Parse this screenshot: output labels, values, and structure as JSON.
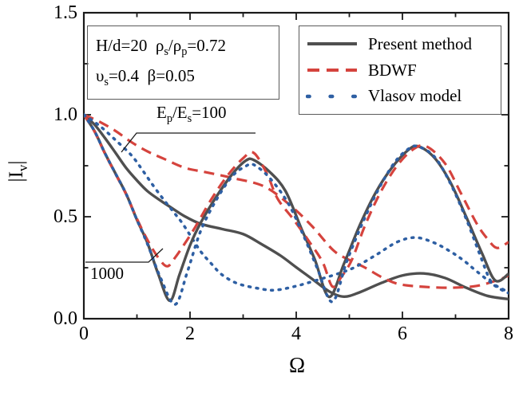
{
  "figure": {
    "background": "#ffffff",
    "axis_color": "#1a1a1a",
    "box_border_color": "#5a5a5a",
    "text_color": "#000000"
  },
  "param_box": {
    "line1": [
      {
        "t": "H/d=20  ρ"
      },
      {
        "sub": "s"
      },
      {
        "t": "/ρ"
      },
      {
        "sub": "p"
      },
      {
        "t": "=0.72"
      }
    ],
    "line2": [
      {
        "t": "υ"
      },
      {
        "sub": "s"
      },
      {
        "t": "=0.4  β=0.05"
      }
    ]
  },
  "annotations": {
    "ratio_100": {
      "text": [
        {
          "t": "E"
        },
        {
          "sub": "p"
        },
        {
          "t": "/E"
        },
        {
          "sub": "s"
        },
        {
          "t": "=100"
        }
      ]
    },
    "ratio_1000": {
      "text": [
        {
          "t": "1000"
        }
      ]
    }
  },
  "legend": {
    "entries": [
      {
        "label": "Present method",
        "style": "solid",
        "color": "#4f4f4f"
      },
      {
        "label": "BDWF",
        "style": "dashed",
        "color": "#d5433d"
      },
      {
        "label": "Vlasov model",
        "style": "dotted",
        "color": "#2e5fa3"
      }
    ]
  },
  "chart_data": {
    "type": "line",
    "xlabel": "Ω",
    "ylabel": "|Iv|",
    "ylabel_rich": [
      {
        "t": "|I"
      },
      {
        "sub": "v"
      },
      {
        "t": "|"
      }
    ],
    "xlim": [
      0,
      8
    ],
    "ylim": [
      0,
      1.5
    ],
    "grid": false,
    "legend_position": "top-right",
    "x_ticks": {
      "major": [
        {
          "v": 0,
          "label": "0"
        },
        {
          "v": 2,
          "label": "2"
        },
        {
          "v": 4,
          "label": "4"
        },
        {
          "v": 6,
          "label": "6"
        },
        {
          "v": 8,
          "label": "8"
        }
      ],
      "minor": [
        1,
        3,
        5,
        7
      ]
    },
    "y_ticks": {
      "major": [
        {
          "v": 0,
          "label": "0.0"
        },
        {
          "v": 0.5,
          "label": "0.5"
        },
        {
          "v": 1.0,
          "label": "1.0"
        },
        {
          "v": 1.5,
          "label": "1.5"
        }
      ],
      "minor": [
        0.25,
        0.75,
        1.25
      ]
    },
    "series": [
      {
        "id": "present-100",
        "name": "Present method",
        "group": "Ep/Es=100",
        "style": "solid",
        "color": "#4f4f4f",
        "width": 3.4,
        "points": [
          [
            0,
            1.0
          ],
          [
            0.2,
            0.952
          ],
          [
            0.4,
            0.885
          ],
          [
            0.6,
            0.812
          ],
          [
            0.8,
            0.738
          ],
          [
            1.0,
            0.678
          ],
          [
            1.2,
            0.625
          ],
          [
            1.45,
            0.578
          ],
          [
            1.62,
            0.549
          ],
          [
            1.9,
            0.502
          ],
          [
            2.2,
            0.465
          ],
          [
            2.6,
            0.44
          ],
          [
            3.0,
            0.415
          ],
          [
            3.35,
            0.365
          ],
          [
            3.7,
            0.31
          ],
          [
            4.0,
            0.252
          ],
          [
            4.3,
            0.195
          ],
          [
            4.62,
            0.134
          ],
          [
            4.9,
            0.108
          ],
          [
            5.2,
            0.13
          ],
          [
            5.6,
            0.175
          ],
          [
            6.0,
            0.212
          ],
          [
            6.4,
            0.222
          ],
          [
            6.8,
            0.2
          ],
          [
            7.2,
            0.152
          ],
          [
            7.6,
            0.112
          ],
          [
            8.0,
            0.096
          ]
        ]
      },
      {
        "id": "bdwf-100",
        "name": "BDWF",
        "group": "Ep/Es=100",
        "style": "dashed",
        "color": "#d5433d",
        "width": 3.2,
        "points": [
          [
            0,
            1.0
          ],
          [
            0.3,
            0.965
          ],
          [
            0.6,
            0.92
          ],
          [
            0.9,
            0.865
          ],
          [
            1.2,
            0.82
          ],
          [
            1.5,
            0.785
          ],
          [
            1.9,
            0.74
          ],
          [
            2.3,
            0.718
          ],
          [
            2.8,
            0.69
          ],
          [
            3.4,
            0.648
          ],
          [
            3.9,
            0.553
          ],
          [
            4.3,
            0.453
          ],
          [
            4.7,
            0.335
          ],
          [
            5.0,
            0.288
          ],
          [
            5.3,
            0.25
          ],
          [
            5.6,
            0.205
          ],
          [
            5.9,
            0.172
          ],
          [
            6.3,
            0.158
          ],
          [
            6.9,
            0.152
          ],
          [
            7.4,
            0.161
          ],
          [
            7.8,
            0.19
          ],
          [
            8.0,
            0.212
          ]
        ]
      },
      {
        "id": "vlasov-100",
        "name": "Vlasov model",
        "group": "Ep/Es=100",
        "style": "dotted",
        "color": "#2e5fa3",
        "width": 3.5,
        "points": [
          [
            0,
            1.0
          ],
          [
            0.3,
            0.945
          ],
          [
            0.6,
            0.875
          ],
          [
            0.9,
            0.8
          ],
          [
            1.1,
            0.73
          ],
          [
            1.3,
            0.655
          ],
          [
            1.5,
            0.585
          ],
          [
            1.7,
            0.52
          ],
          [
            1.85,
            0.47
          ],
          [
            2.0,
            0.41
          ],
          [
            2.2,
            0.33
          ],
          [
            2.4,
            0.27
          ],
          [
            2.6,
            0.216
          ],
          [
            2.9,
            0.172
          ],
          [
            3.3,
            0.148
          ],
          [
            3.6,
            0.14
          ],
          [
            4.0,
            0.16
          ],
          [
            4.4,
            0.19
          ],
          [
            4.8,
            0.222
          ],
          [
            5.1,
            0.252
          ],
          [
            5.5,
            0.312
          ],
          [
            5.9,
            0.376
          ],
          [
            6.25,
            0.398
          ],
          [
            6.6,
            0.372
          ],
          [
            6.9,
            0.33
          ],
          [
            7.15,
            0.286
          ],
          [
            7.4,
            0.232
          ],
          [
            7.7,
            0.172
          ],
          [
            8.0,
            0.13
          ]
        ]
      },
      {
        "id": "present-1000",
        "name": "Present method",
        "group": "Ep/Es=1000",
        "style": "solid",
        "color": "#4f4f4f",
        "width": 3.4,
        "points": [
          [
            0,
            1.0
          ],
          [
            0.2,
            0.92
          ],
          [
            0.4,
            0.81
          ],
          [
            0.6,
            0.71
          ],
          [
            0.8,
            0.61
          ],
          [
            1.0,
            0.485
          ],
          [
            1.2,
            0.37
          ],
          [
            1.4,
            0.22
          ],
          [
            1.62,
            0.088
          ],
          [
            1.8,
            0.215
          ],
          [
            2.0,
            0.36
          ],
          [
            2.2,
            0.47
          ],
          [
            2.5,
            0.6
          ],
          [
            2.8,
            0.71
          ],
          [
            3.05,
            0.775
          ],
          [
            3.2,
            0.778
          ],
          [
            3.5,
            0.72
          ],
          [
            3.8,
            0.625
          ],
          [
            4.1,
            0.44
          ],
          [
            4.35,
            0.29
          ],
          [
            4.62,
            0.107
          ],
          [
            4.9,
            0.27
          ],
          [
            5.2,
            0.46
          ],
          [
            5.5,
            0.62
          ],
          [
            5.8,
            0.74
          ],
          [
            6.1,
            0.825
          ],
          [
            6.3,
            0.845
          ],
          [
            6.6,
            0.79
          ],
          [
            6.9,
            0.67
          ],
          [
            7.2,
            0.5
          ],
          [
            7.5,
            0.32
          ],
          [
            7.75,
            0.187
          ],
          [
            8.0,
            0.22
          ]
        ]
      },
      {
        "id": "bdwf-1000",
        "name": "BDWF",
        "group": "Ep/Es=1000",
        "style": "dashed",
        "color": "#d5433d",
        "width": 3.2,
        "points": [
          [
            0,
            1.0
          ],
          [
            0.2,
            0.918
          ],
          [
            0.4,
            0.808
          ],
          [
            0.6,
            0.708
          ],
          [
            0.8,
            0.608
          ],
          [
            1.0,
            0.49
          ],
          [
            1.2,
            0.385
          ],
          [
            1.4,
            0.3
          ],
          [
            1.57,
            0.257
          ],
          [
            1.72,
            0.3
          ],
          [
            1.9,
            0.368
          ],
          [
            2.1,
            0.45
          ],
          [
            2.4,
            0.585
          ],
          [
            2.7,
            0.7
          ],
          [
            3.0,
            0.787
          ],
          [
            3.2,
            0.813
          ],
          [
            3.45,
            0.71
          ],
          [
            3.65,
            0.588
          ],
          [
            3.95,
            0.486
          ],
          [
            4.25,
            0.376
          ],
          [
            4.5,
            0.276
          ],
          [
            4.68,
            0.158
          ],
          [
            4.85,
            0.205
          ],
          [
            5.05,
            0.29
          ],
          [
            5.3,
            0.46
          ],
          [
            5.6,
            0.626
          ],
          [
            5.9,
            0.75
          ],
          [
            6.2,
            0.83
          ],
          [
            6.45,
            0.845
          ],
          [
            6.8,
            0.762
          ],
          [
            7.1,
            0.616
          ],
          [
            7.4,
            0.466
          ],
          [
            7.6,
            0.392
          ],
          [
            7.78,
            0.347
          ],
          [
            8.0,
            0.376
          ]
        ]
      },
      {
        "id": "vlasov-1000",
        "name": "Vlasov model",
        "group": "Ep/Es=1000",
        "style": "dotted",
        "color": "#2e5fa3",
        "width": 3.5,
        "points": [
          [
            0,
            1.0
          ],
          [
            0.2,
            0.92
          ],
          [
            0.4,
            0.81
          ],
          [
            0.6,
            0.71
          ],
          [
            0.8,
            0.61
          ],
          [
            1.0,
            0.485
          ],
          [
            1.2,
            0.365
          ],
          [
            1.45,
            0.197
          ],
          [
            1.72,
            0.07
          ],
          [
            1.95,
            0.23
          ],
          [
            2.2,
            0.43
          ],
          [
            2.5,
            0.585
          ],
          [
            2.8,
            0.7
          ],
          [
            3.05,
            0.748
          ],
          [
            3.2,
            0.755
          ],
          [
            3.5,
            0.69
          ],
          [
            3.85,
            0.565
          ],
          [
            4.15,
            0.4
          ],
          [
            4.4,
            0.245
          ],
          [
            4.68,
            0.083
          ],
          [
            4.95,
            0.28
          ],
          [
            5.25,
            0.47
          ],
          [
            5.55,
            0.635
          ],
          [
            5.85,
            0.765
          ],
          [
            6.1,
            0.83
          ],
          [
            6.28,
            0.845
          ],
          [
            6.6,
            0.795
          ],
          [
            6.9,
            0.665
          ],
          [
            7.2,
            0.49
          ],
          [
            7.45,
            0.32
          ],
          [
            7.65,
            0.19
          ],
          [
            7.8,
            0.152
          ],
          [
            8.0,
            0.125
          ]
        ]
      }
    ]
  }
}
